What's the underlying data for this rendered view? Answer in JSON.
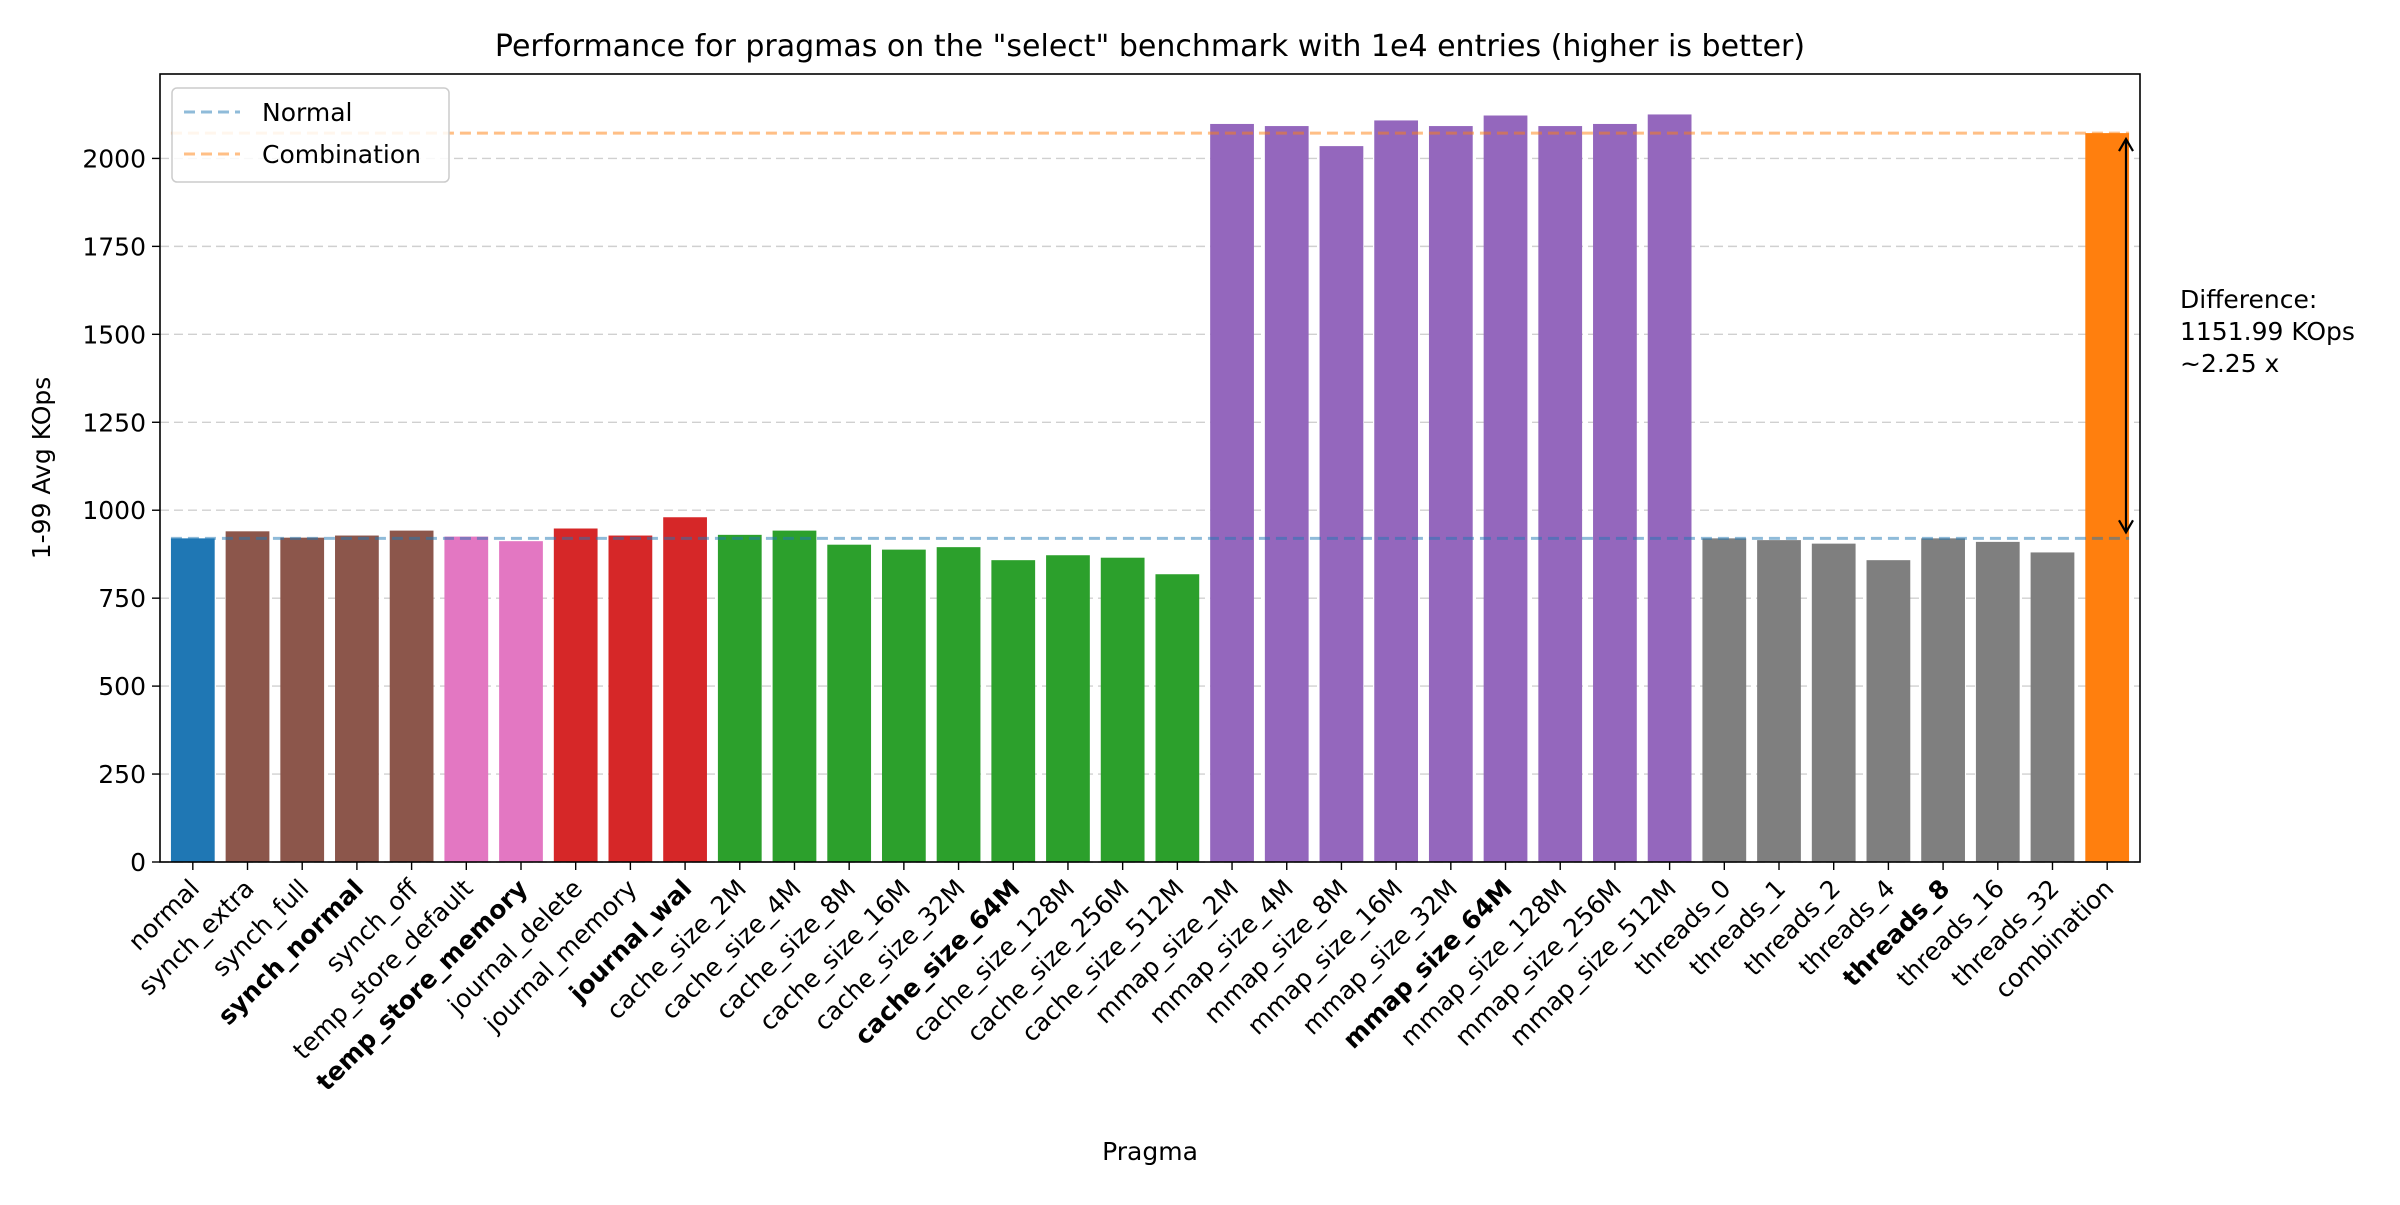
{
  "chart_data": {
    "type": "bar",
    "title": "Performance for pragmas on the \"select\" benchmark with 1e4 entries (higher is better)",
    "xlabel": "Pragma",
    "ylabel": "1-99 Avg KOps",
    "ylim": [
      0,
      2240
    ],
    "yticks": [
      0,
      250,
      500,
      750,
      1000,
      1250,
      1500,
      1750,
      2000
    ],
    "grid": "horizontal dashed",
    "legend_position": "top-left",
    "categories": [
      "normal",
      "synch_extra",
      "synch_full",
      "synch_normal",
      "synch_off",
      "temp_store_default",
      "temp_store_memory",
      "journal_delete",
      "journal_memory",
      "journal_wal",
      "cache_size_2M",
      "cache_size_4M",
      "cache_size_8M",
      "cache_size_16M",
      "cache_size_32M",
      "cache_size_64M",
      "cache_size_128M",
      "cache_size_256M",
      "cache_size_512M",
      "mmap_size_2M",
      "mmap_size_4M",
      "mmap_size_8M",
      "mmap_size_16M",
      "mmap_size_32M",
      "mmap_size_64M",
      "mmap_size_128M",
      "mmap_size_256M",
      "mmap_size_512M",
      "threads_0",
      "threads_1",
      "threads_2",
      "threads_4",
      "threads_8",
      "threads_16",
      "threads_32",
      "combination"
    ],
    "values": [
      920,
      940,
      922,
      928,
      942,
      925,
      912,
      948,
      928,
      980,
      930,
      942,
      902,
      888,
      895,
      858,
      872,
      865,
      818,
      2098,
      2092,
      2035,
      2108,
      2092,
      2122,
      2092,
      2098,
      2125,
      920,
      915,
      905,
      858,
      920,
      910,
      880,
      2072
    ],
    "bold_labels": [
      "synch_normal",
      "temp_store_memory",
      "journal_wal",
      "cache_size_64M",
      "mmap_size_64M",
      "threads_8"
    ],
    "bar_colors": [
      "#1f77b4",
      "#8c564b",
      "#8c564b",
      "#8c564b",
      "#8c564b",
      "#e377c2",
      "#e377c2",
      "#d62728",
      "#d62728",
      "#d62728",
      "#2ca02c",
      "#2ca02c",
      "#2ca02c",
      "#2ca02c",
      "#2ca02c",
      "#2ca02c",
      "#2ca02c",
      "#2ca02c",
      "#2ca02c",
      "#9467bd",
      "#9467bd",
      "#9467bd",
      "#9467bd",
      "#9467bd",
      "#9467bd",
      "#9467bd",
      "#9467bd",
      "#9467bd",
      "#7f7f7f",
      "#7f7f7f",
      "#7f7f7f",
      "#7f7f7f",
      "#7f7f7f",
      "#7f7f7f",
      "#7f7f7f",
      "#ff7f0e"
    ],
    "reference_lines": [
      {
        "name": "Normal",
        "value": 920,
        "color": "#1f77b4"
      },
      {
        "name": "Combination",
        "value": 2072,
        "color": "#ff7f0e"
      }
    ],
    "annotation": {
      "lines": [
        "Difference:",
        "1151.99 KOps",
        "~2.25 x"
      ],
      "from": 920,
      "to": 2072
    }
  }
}
